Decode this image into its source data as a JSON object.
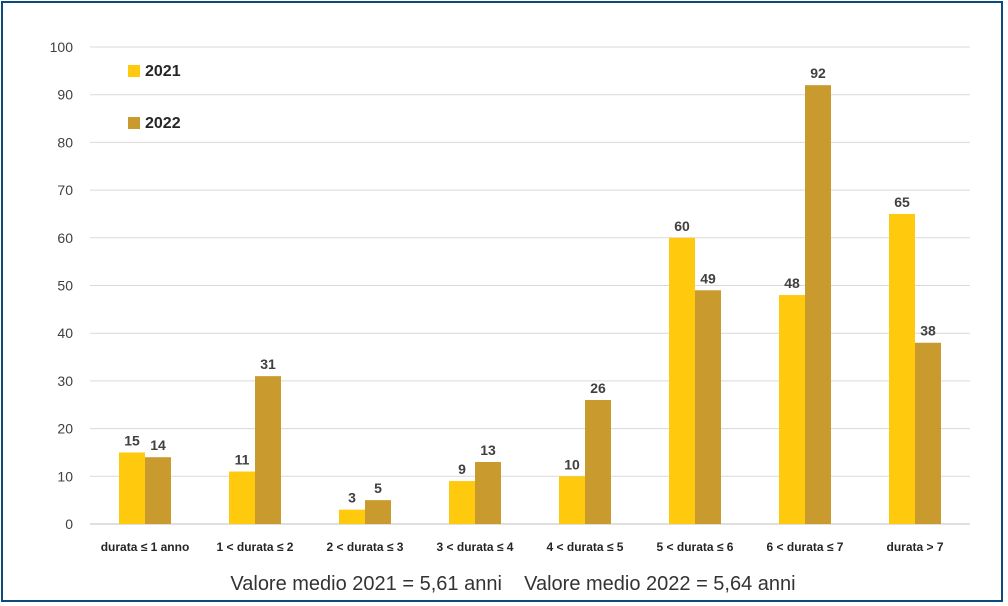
{
  "chart_data": {
    "type": "bar",
    "categories": [
      "durata ≤ 1 anno",
      "1 < durata ≤ 2",
      "2 < durata ≤ 3",
      "3 < durata ≤ 4",
      "4 < durata ≤ 5",
      "5 < durata ≤ 6",
      "6 < durata ≤ 7",
      "durata > 7"
    ],
    "series": [
      {
        "name": "2021",
        "values": [
          15,
          11,
          3,
          9,
          10,
          60,
          48,
          65
        ],
        "color": "#ffc90e"
      },
      {
        "name": "2022",
        "values": [
          14,
          31,
          5,
          13,
          26,
          49,
          92,
          38
        ],
        "color": "#c99a2e"
      }
    ],
    "ylim": [
      0,
      100
    ],
    "yticks": [
      0,
      10,
      20,
      30,
      40,
      50,
      60,
      70,
      80,
      90,
      100
    ],
    "grid": true,
    "legend": "top-left",
    "annotation": "Valore medio 2021 = 5,61 anni    Valore medio 2022 = 5,64 anni"
  }
}
